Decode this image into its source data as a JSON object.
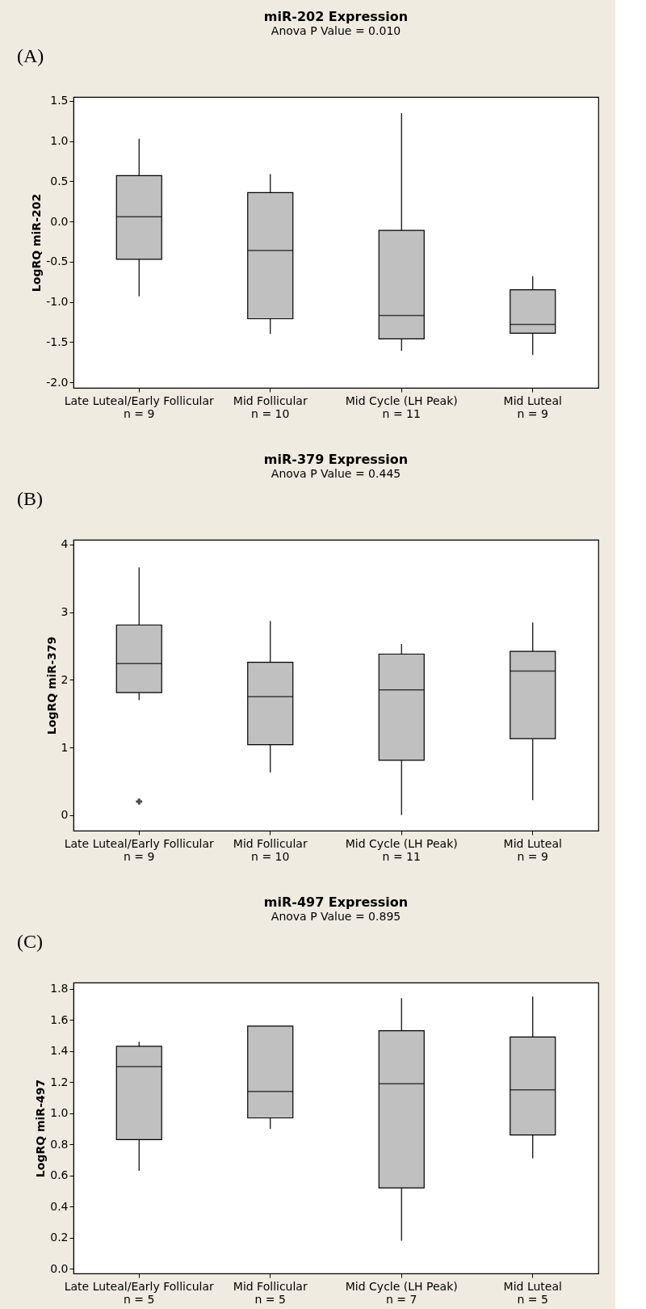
{
  "chart_data": [
    {
      "type": "box",
      "title": "miR-202 Expression",
      "subtitle": "Anova P Value = 0.010",
      "ylabel": "LogRQ miR-202",
      "annotations": [
        "(A)"
      ],
      "categories": [
        "Late Luteal/Early Follicular\nn = 9",
        "Mid Follicular\nn = 10",
        "Mid Cycle (LH Peak)\nn = 11",
        "Mid Luteal\nn = 9"
      ],
      "series": [
        {
          "color": "#c0c0c0",
          "boxes": [
            {
              "low": -0.93,
              "q1": -0.47,
              "median": 0.06,
              "q3": 0.57,
              "high": 1.03
            },
            {
              "low": -1.4,
              "q1": -1.21,
              "median": -0.36,
              "q3": 0.36,
              "high": 0.59
            },
            {
              "low": -1.61,
              "q1": -1.46,
              "median": -1.17,
              "q3": -0.11,
              "high": 1.35
            },
            {
              "low": -1.66,
              "q1": -1.39,
              "median": -1.28,
              "q3": -0.85,
              "high": -0.68
            }
          ]
        }
      ],
      "ylim": [
        -2.07,
        1.55
      ],
      "yticks": [
        {
          "value": -2,
          "label": "-2.0"
        },
        {
          "value": -1.5,
          "label": "-1.5"
        },
        {
          "value": -1,
          "label": "-1.0"
        },
        {
          "value": -0.5,
          "label": "-0.5"
        },
        {
          "value": 0,
          "label": "0.0"
        },
        {
          "value": 0.5,
          "label": "0.5"
        },
        {
          "value": 1,
          "label": "1.0"
        },
        {
          "value": 1.5,
          "label": "1.5"
        }
      ],
      "grid": false
    },
    {
      "type": "box",
      "title": "miR-379 Expression",
      "subtitle": "Anova P Value = 0.445",
      "ylabel": "LogRQ miR-379",
      "annotations": [
        "(B)"
      ],
      "categories": [
        "Late Luteal/Early Follicular\nn = 9",
        "Mid Follicular\nn = 10",
        "Mid Cycle (LH Peak)\nn = 11",
        "Mid Luteal\nn = 9"
      ],
      "series": [
        {
          "color": "#c0c0c0",
          "boxes": [
            {
              "low": 1.7,
              "q1": 1.81,
              "median": 2.24,
              "q3": 2.81,
              "high": 3.66,
              "outliers": [
                0.2
              ]
            },
            {
              "low": 0.63,
              "q1": 1.04,
              "median": 1.75,
              "q3": 2.26,
              "high": 2.87
            },
            {
              "low": 0.0,
              "q1": 0.81,
              "median": 1.85,
              "q3": 2.38,
              "high": 2.53
            },
            {
              "low": 0.22,
              "q1": 1.13,
              "median": 2.13,
              "q3": 2.42,
              "high": 2.85
            }
          ]
        }
      ],
      "ylim": [
        -0.23,
        4.07
      ],
      "yticks": [
        0,
        1,
        2,
        3,
        4
      ],
      "grid": false,
      "marker": "cross"
    },
    {
      "type": "box",
      "title": "miR-497 Expression",
      "subtitle": "Anova P Value = 0.895",
      "ylabel": "LogRQ miR-497",
      "annotations": [
        "(C)"
      ],
      "categories": [
        "Late Luteal/Early Follicular\nn = 5",
        "Mid Follicular\nn = 5",
        "Mid Cycle (LH Peak)\nn = 7",
        "Mid Luteal\nn = 5"
      ],
      "series": [
        {
          "color": "#c0c0c0",
          "boxes": [
            {
              "low": 0.63,
              "q1": 0.83,
              "median": 1.3,
              "q3": 1.43,
              "high": 1.46
            },
            {
              "low": 0.9,
              "q1": 0.97,
              "median": 1.14,
              "q3": 1.56,
              "high": 1.56
            },
            {
              "low": 0.18,
              "q1": 0.52,
              "median": 1.19,
              "q3": 1.53,
              "high": 1.74
            },
            {
              "low": 0.71,
              "q1": 0.86,
              "median": 1.15,
              "q3": 1.49,
              "high": 1.75
            }
          ]
        }
      ],
      "ylim": [
        -0.03,
        1.84
      ],
      "yticks": [
        {
          "value": 0,
          "label": "0.0"
        },
        {
          "value": 0.2,
          "label": "0.2"
        },
        {
          "value": 0.4,
          "label": "0.4"
        },
        {
          "value": 0.6,
          "label": "0.6"
        },
        {
          "value": 0.8,
          "label": "0.8"
        },
        {
          "value": 1,
          "label": "1.0"
        },
        {
          "value": 1.2,
          "label": "1.2"
        },
        {
          "value": 1.4,
          "label": "1.4"
        },
        {
          "value": 1.6,
          "label": "1.6"
        },
        {
          "value": 1.8,
          "label": "1.8"
        }
      ],
      "grid": false
    }
  ]
}
